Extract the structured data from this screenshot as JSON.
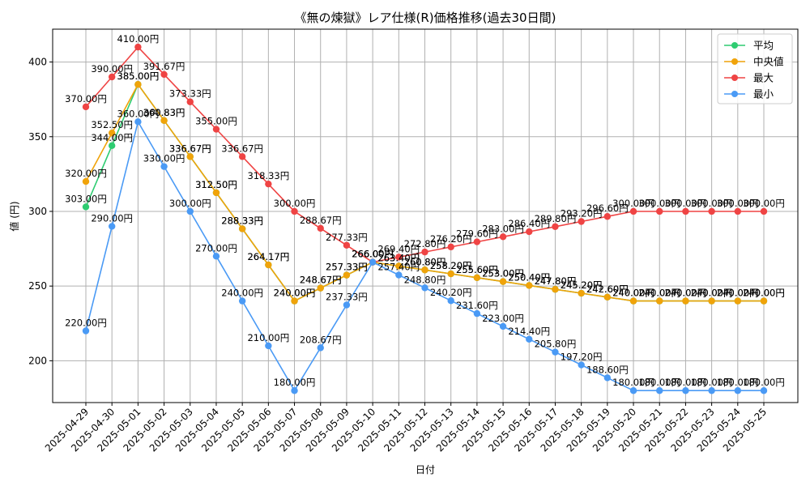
{
  "chart_data": {
    "type": "line",
    "title": "《無の煉獄》レア仕様(R)価格推移(過去30日間)",
    "xlabel": "日付",
    "ylabel": "値 (円)",
    "ylim": [
      172,
      422
    ],
    "yticks": [
      200,
      250,
      300,
      350,
      400
    ],
    "grid": true,
    "legend_position": "top-right",
    "label_suffix": "円",
    "x": [
      "2025-04-29",
      "2025-04-30",
      "2025-05-01",
      "2025-05-02",
      "2025-05-03",
      "2025-05-04",
      "2025-05-05",
      "2025-05-06",
      "2025-05-07",
      "2025-05-08",
      "2025-05-09",
      "2025-05-10",
      "2025-05-11",
      "2025-05-12",
      "2025-05-13",
      "2025-05-14",
      "2025-05-15",
      "2025-05-16",
      "2025-05-17",
      "2025-05-18",
      "2025-05-19",
      "2025-05-20",
      "2025-05-21",
      "2025-05-22",
      "2025-05-23",
      "2025-05-24",
      "2025-05-25"
    ],
    "series": [
      {
        "name": "平均",
        "color": "#2ecc71",
        "values": [
          303.0,
          344.0,
          385.0,
          360.83,
          336.67,
          312.5,
          288.33,
          264.17,
          240.0,
          248.67,
          257.33,
          266.0,
          263.4,
          260.8,
          258.2,
          255.6,
          253.0,
          250.4,
          247.8,
          245.2,
          242.6,
          240.0,
          240.0,
          240.0,
          240.0,
          240.0,
          240.0
        ]
      },
      {
        "name": "中央値",
        "color": "#f0a30a",
        "values": [
          320.0,
          352.5,
          385.0,
          360.83,
          336.67,
          312.5,
          288.33,
          264.17,
          240.0,
          248.67,
          257.33,
          266.0,
          263.4,
          260.8,
          258.2,
          255.6,
          253.0,
          250.4,
          247.8,
          245.2,
          242.6,
          240.0,
          240.0,
          240.0,
          240.0,
          240.0,
          240.0
        ]
      },
      {
        "name": "最大",
        "color": "#ef4444",
        "values": [
          370.0,
          390.0,
          410.0,
          391.67,
          373.33,
          355.0,
          336.67,
          318.33,
          300.0,
          288.67,
          277.33,
          266.0,
          269.4,
          272.8,
          276.2,
          279.6,
          283.0,
          286.4,
          289.8,
          293.2,
          296.6,
          300.0,
          300.0,
          300.0,
          300.0,
          300.0,
          300.0
        ]
      },
      {
        "name": "最小",
        "color": "#4a9af5",
        "values": [
          220.0,
          290.0,
          360.0,
          330.0,
          300.0,
          270.0,
          240.0,
          210.0,
          180.0,
          208.67,
          237.33,
          266.0,
          257.4,
          248.8,
          240.2,
          231.6,
          223.0,
          214.4,
          205.8,
          197.2,
          188.6,
          180.0,
          180.0,
          180.0,
          180.0,
          180.0,
          180.0
        ]
      }
    ]
  }
}
